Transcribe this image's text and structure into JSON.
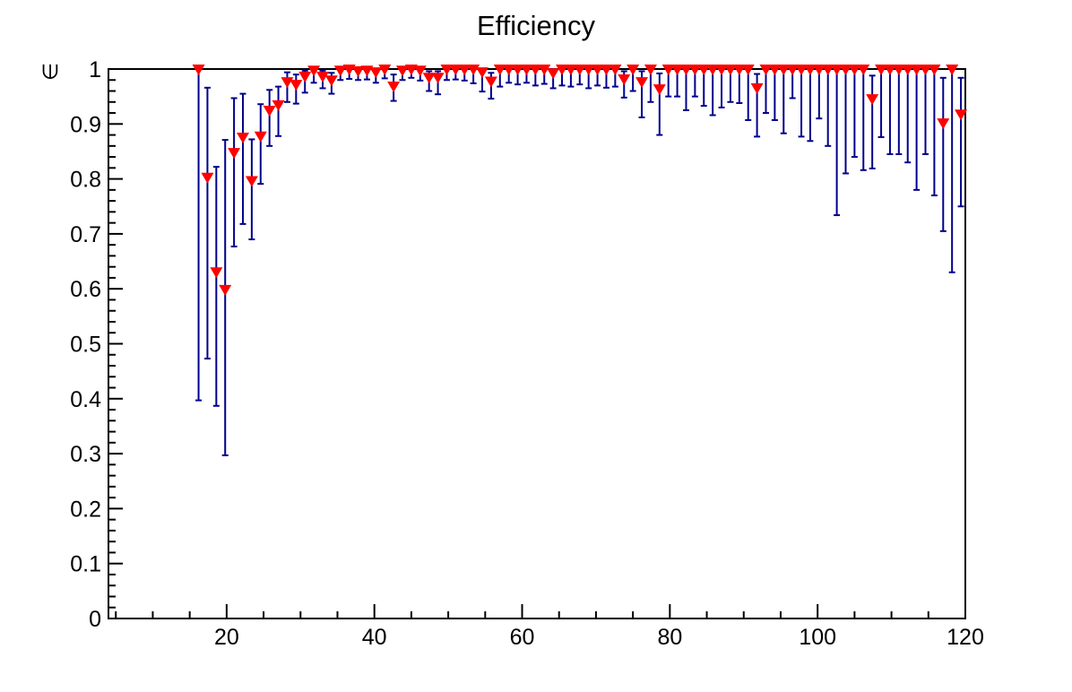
{
  "title": "Efficiency",
  "axes": {
    "x": {
      "tick_values": [
        20,
        40,
        60,
        80,
        100,
        120
      ],
      "tick_labels": [
        "20",
        "40",
        "60",
        "80",
        "100",
        "120"
      ],
      "minor_step": 5
    },
    "y": {
      "title": "∈",
      "tick_values": [
        0,
        0.1,
        0.2,
        0.3,
        0.4,
        0.5,
        0.6,
        0.7,
        0.8,
        0.9,
        1
      ],
      "tick_labels": [
        "0",
        "0.1",
        "0.2",
        "0.3",
        "0.4",
        "0.5",
        "0.6",
        "0.7",
        "0.8",
        "0.9",
        "1"
      ],
      "minor_step": 0.02
    }
  },
  "colors": {
    "marker": "#ff0000",
    "error_bar": "#00008b",
    "axis": "#000000",
    "background": "#ffffff"
  },
  "chart_data": {
    "type": "scatter",
    "title": "Efficiency",
    "xlabel": "",
    "ylabel": "∈",
    "xlim": [
      4,
      120
    ],
    "ylim": [
      0,
      1
    ],
    "grid": false,
    "legend": "none",
    "marker": "inverted-triangle",
    "points_format": [
      "x",
      "y",
      "y_low",
      "y_high"
    ],
    "points": [
      [
        16.2,
        1.0,
        0.397,
        1.0
      ],
      [
        17.4,
        0.803,
        0.473,
        0.966
      ],
      [
        18.6,
        0.631,
        0.387,
        0.822
      ],
      [
        19.8,
        0.599,
        0.297,
        0.871
      ],
      [
        21.0,
        0.848,
        0.677,
        0.947
      ],
      [
        22.2,
        0.876,
        0.718,
        0.955
      ],
      [
        23.4,
        0.797,
        0.69,
        0.872
      ],
      [
        24.6,
        0.878,
        0.791,
        0.936
      ],
      [
        25.8,
        0.925,
        0.86,
        0.962
      ],
      [
        27.0,
        0.935,
        0.878,
        0.968
      ],
      [
        28.2,
        0.977,
        0.94,
        0.994
      ],
      [
        29.4,
        0.972,
        0.937,
        0.99
      ],
      [
        30.6,
        0.987,
        0.957,
        0.997
      ],
      [
        31.8,
        0.998,
        0.975,
        1.0
      ],
      [
        33.0,
        0.987,
        0.965,
        0.997
      ],
      [
        34.2,
        0.98,
        0.955,
        0.993
      ],
      [
        35.4,
        0.998,
        0.98,
        1.0
      ],
      [
        36.6,
        1.0,
        0.982,
        1.0
      ],
      [
        37.8,
        0.997,
        0.98,
        1.0
      ],
      [
        39.0,
        0.998,
        0.981,
        1.0
      ],
      [
        40.2,
        0.995,
        0.975,
        1.0
      ],
      [
        41.4,
        1.0,
        0.983,
        1.0
      ],
      [
        42.6,
        0.969,
        0.942,
        0.99
      ],
      [
        43.8,
        0.998,
        0.98,
        1.0
      ],
      [
        45.0,
        1.0,
        0.984,
        1.0
      ],
      [
        46.2,
        0.998,
        0.979,
        1.0
      ],
      [
        47.4,
        0.985,
        0.96,
        0.996
      ],
      [
        48.6,
        0.985,
        0.954,
        0.996
      ],
      [
        49.8,
        1.0,
        0.98,
        1.0
      ],
      [
        51.0,
        1.0,
        0.981,
        1.0
      ],
      [
        52.2,
        1.0,
        0.979,
        1.0
      ],
      [
        53.4,
        1.0,
        0.974,
        1.0
      ],
      [
        54.6,
        0.995,
        0.959,
        1.0
      ],
      [
        55.8,
        0.978,
        0.946,
        0.993
      ],
      [
        57.0,
        1.0,
        0.968,
        1.0
      ],
      [
        58.2,
        1.0,
        0.975,
        1.0
      ],
      [
        59.4,
        1.0,
        0.972,
        1.0
      ],
      [
        60.6,
        1.0,
        0.975,
        1.0
      ],
      [
        61.8,
        1.0,
        0.97,
        1.0
      ],
      [
        63.0,
        1.0,
        0.973,
        1.0
      ],
      [
        64.2,
        0.993,
        0.965,
        1.0
      ],
      [
        65.4,
        1.0,
        0.97,
        1.0
      ],
      [
        66.6,
        1.0,
        0.968,
        1.0
      ],
      [
        67.8,
        1.0,
        0.972,
        1.0
      ],
      [
        69.0,
        1.0,
        0.965,
        1.0
      ],
      [
        70.2,
        1.0,
        0.97,
        1.0
      ],
      [
        71.4,
        1.0,
        0.966,
        1.0
      ],
      [
        72.6,
        1.0,
        0.968,
        1.0
      ],
      [
        73.8,
        0.982,
        0.948,
        0.996
      ],
      [
        75.0,
        1.0,
        0.96,
        1.0
      ],
      [
        76.2,
        0.977,
        0.912,
        0.996
      ],
      [
        77.4,
        1.0,
        0.94,
        1.0
      ],
      [
        78.6,
        0.964,
        0.88,
        0.992
      ],
      [
        79.8,
        1.0,
        0.95,
        1.0
      ],
      [
        81.0,
        1.0,
        0.95,
        1.0
      ],
      [
        82.2,
        1.0,
        0.925,
        1.0
      ],
      [
        83.4,
        1.0,
        0.95,
        1.0
      ],
      [
        84.6,
        1.0,
        0.933,
        1.0
      ],
      [
        85.8,
        1.0,
        0.916,
        1.0
      ],
      [
        87.0,
        1.0,
        0.93,
        1.0
      ],
      [
        88.2,
        1.0,
        0.94,
        1.0
      ],
      [
        89.4,
        1.0,
        0.938,
        1.0
      ],
      [
        90.6,
        1.0,
        0.907,
        1.0
      ],
      [
        91.8,
        0.966,
        0.877,
        0.991
      ],
      [
        93.0,
        1.0,
        0.92,
        1.0
      ],
      [
        94.2,
        1.0,
        0.907,
        1.0
      ],
      [
        95.4,
        1.0,
        0.883,
        1.0
      ],
      [
        96.6,
        1.0,
        0.947,
        1.0
      ],
      [
        97.8,
        1.0,
        0.877,
        1.0
      ],
      [
        99.0,
        1.0,
        0.869,
        1.0
      ],
      [
        100.2,
        1.0,
        0.91,
        1.0
      ],
      [
        101.4,
        1.0,
        0.86,
        1.0
      ],
      [
        102.6,
        1.0,
        0.734,
        1.0
      ],
      [
        103.8,
        1.0,
        0.81,
        1.0
      ],
      [
        105.0,
        1.0,
        0.84,
        1.0
      ],
      [
        106.2,
        1.0,
        0.816,
        1.0
      ],
      [
        107.4,
        0.946,
        0.819,
        0.988
      ],
      [
        108.6,
        1.0,
        0.876,
        1.0
      ],
      [
        109.8,
        1.0,
        0.845,
        1.0
      ],
      [
        111.0,
        1.0,
        0.845,
        1.0
      ],
      [
        112.2,
        1.0,
        0.83,
        1.0
      ],
      [
        113.4,
        1.0,
        0.78,
        1.0
      ],
      [
        114.6,
        1.0,
        0.845,
        1.0
      ],
      [
        115.8,
        1.0,
        0.77,
        1.0
      ],
      [
        117.0,
        0.902,
        0.705,
        0.984
      ],
      [
        118.2,
        1.0,
        0.63,
        1.0
      ],
      [
        119.4,
        0.918,
        0.75,
        0.984
      ]
    ]
  }
}
